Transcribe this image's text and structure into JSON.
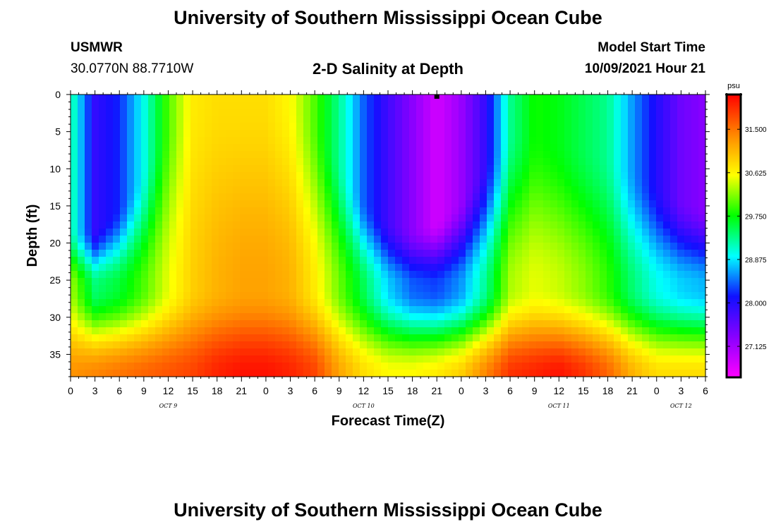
{
  "page": {
    "title_top": "University of Southern Mississippi Ocean Cube",
    "title_bottom": "University of Southern Mississippi Ocean Cube",
    "station": "USMWR",
    "coords": "30.0770N  88.7710W",
    "start_label": "Model Start Time",
    "start_time": "10/09/2021 Hour 21"
  },
  "chart_data": {
    "type": "heatmap",
    "title": "2-D Salinity at Depth",
    "xlabel": "Forecast Time(Z)",
    "ylabel": "Depth (ft)",
    "x_hours_range": [
      0,
      78
    ],
    "ylim": [
      0,
      38
    ],
    "y_ticks": [
      0,
      5,
      10,
      15,
      20,
      25,
      30,
      35
    ],
    "x_tick_labels": [
      "0",
      "3",
      "6",
      "9",
      "12",
      "15",
      "18",
      "21",
      "0",
      "3",
      "6",
      "9",
      "12",
      "15",
      "18",
      "21",
      "0",
      "3",
      "6",
      "9",
      "12",
      "15",
      "18",
      "21",
      "0",
      "3",
      "6"
    ],
    "day_labels": [
      {
        "label": "OCT 9",
        "hour": 12
      },
      {
        "label": "OCT 10",
        "hour": 36
      },
      {
        "label": "OCT 11",
        "hour": 60
      },
      {
        "label": "OCT 12",
        "hour": 75
      }
    ],
    "marker": {
      "hour": 45,
      "depth": 0
    },
    "colorbar": {
      "unit": "psu",
      "range": [
        26.5,
        32.2
      ],
      "tick_values": [
        27.125,
        28.0,
        28.875,
        29.75,
        30.625,
        31.5
      ],
      "tick_labels": [
        "27.125",
        "28.000",
        "28.875",
        "29.750",
        "30.625",
        "31.500"
      ]
    },
    "colors": [
      "#ff00ff",
      "#8800ff",
      "#1010ff",
      "#00ffff",
      "#00ff00",
      "#ffff00",
      "#ff8800",
      "#ff0000"
    ],
    "salinity_profiles": [
      {
        "hour": 0,
        "surface": 29.3,
        "mid": 30.3,
        "bottom": 31.3,
        "transition_depth": 18
      },
      {
        "hour": 3,
        "surface": 27.9,
        "mid": 29.4,
        "bottom": 31.4,
        "transition_depth": 18
      },
      {
        "hour": 6,
        "surface": 28.2,
        "mid": 29.6,
        "bottom": 31.5,
        "transition_depth": 15
      },
      {
        "hour": 9,
        "surface": 29.0,
        "mid": 30.0,
        "bottom": 31.6,
        "transition_depth": 10
      },
      {
        "hour": 12,
        "surface": 30.0,
        "mid": 30.5,
        "bottom": 31.7,
        "transition_depth": 4
      },
      {
        "hour": 15,
        "surface": 30.7,
        "mid": 30.9,
        "bottom": 31.8,
        "transition_depth": 0
      },
      {
        "hour": 18,
        "surface": 30.8,
        "mid": 31.1,
        "bottom": 32.0,
        "transition_depth": 0
      },
      {
        "hour": 21,
        "surface": 30.8,
        "mid": 31.2,
        "bottom": 32.1,
        "transition_depth": 0
      },
      {
        "hour": 24,
        "surface": 30.8,
        "mid": 31.2,
        "bottom": 32.1,
        "transition_depth": 0
      },
      {
        "hour": 27,
        "surface": 30.6,
        "mid": 31.1,
        "bottom": 32.0,
        "transition_depth": 0
      },
      {
        "hour": 30,
        "surface": 30.0,
        "mid": 30.7,
        "bottom": 31.8,
        "transition_depth": 3
      },
      {
        "hour": 33,
        "surface": 29.3,
        "mid": 30.1,
        "bottom": 31.2,
        "transition_depth": 9
      },
      {
        "hour": 36,
        "surface": 28.4,
        "mid": 29.5,
        "bottom": 30.8,
        "transition_depth": 14
      },
      {
        "hour": 39,
        "surface": 27.8,
        "mid": 28.8,
        "bottom": 30.6,
        "transition_depth": 17
      },
      {
        "hour": 42,
        "surface": 27.3,
        "mid": 28.4,
        "bottom": 30.6,
        "transition_depth": 18
      },
      {
        "hour": 45,
        "surface": 26.8,
        "mid": 28.3,
        "bottom": 30.7,
        "transition_depth": 17
      },
      {
        "hour": 48,
        "surface": 27.2,
        "mid": 28.6,
        "bottom": 30.9,
        "transition_depth": 14
      },
      {
        "hour": 51,
        "surface": 27.9,
        "mid": 29.3,
        "bottom": 31.4,
        "transition_depth": 9
      },
      {
        "hour": 54,
        "surface": 29.3,
        "mid": 30.3,
        "bottom": 31.9,
        "transition_depth": 5
      },
      {
        "hour": 57,
        "surface": 29.8,
        "mid": 30.5,
        "bottom": 32.0,
        "transition_depth": 5
      },
      {
        "hour": 60,
        "surface": 29.7,
        "mid": 30.4,
        "bottom": 32.1,
        "transition_depth": 6
      },
      {
        "hour": 63,
        "surface": 29.5,
        "mid": 30.2,
        "bottom": 31.9,
        "transition_depth": 7
      },
      {
        "hour": 66,
        "surface": 29.3,
        "mid": 29.9,
        "bottom": 31.6,
        "transition_depth": 8
      },
      {
        "hour": 69,
        "surface": 28.6,
        "mid": 29.4,
        "bottom": 31.1,
        "transition_depth": 10
      },
      {
        "hour": 72,
        "surface": 28.0,
        "mid": 29.0,
        "bottom": 30.8,
        "transition_depth": 12
      },
      {
        "hour": 75,
        "surface": 27.5,
        "mid": 28.8,
        "bottom": 30.8,
        "transition_depth": 14
      },
      {
        "hour": 78,
        "surface": 27.3,
        "mid": 28.7,
        "bottom": 30.8,
        "transition_depth": 15
      }
    ]
  }
}
